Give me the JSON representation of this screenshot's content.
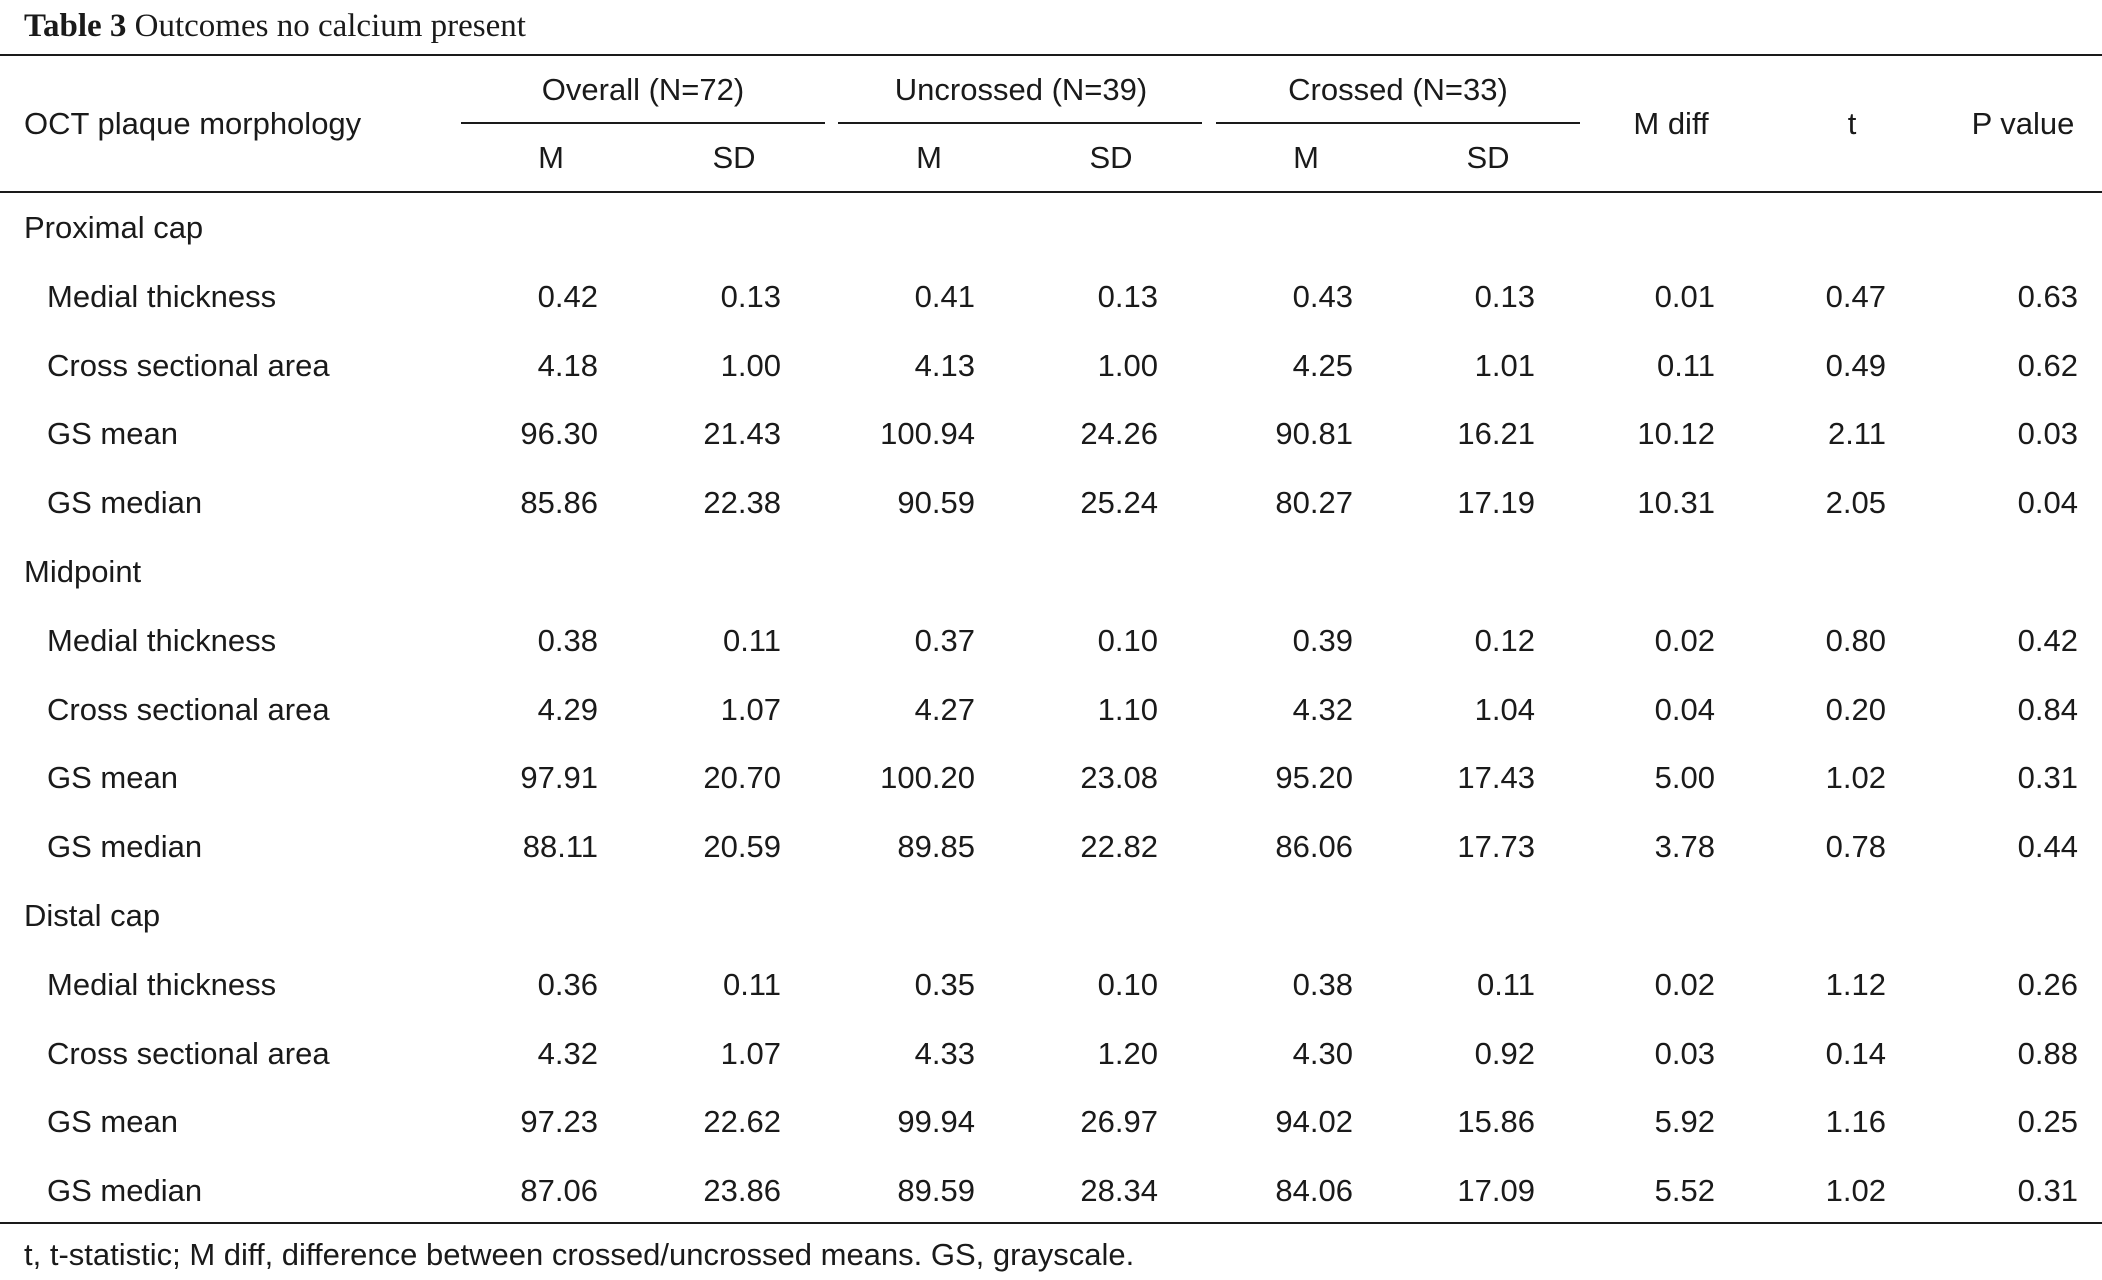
{
  "caption": {
    "label": "Table 3",
    "title": "Outcomes no calcium present"
  },
  "header": {
    "row_label": "OCT plaque morphology",
    "groups": [
      "Overall (N=72)",
      "Uncrossed (N=39)",
      "Crossed (N=33)"
    ],
    "sub": [
      "M",
      "SD",
      "M",
      "SD",
      "M",
      "SD"
    ],
    "mdiff": "M diff",
    "t": "t",
    "p": "P value"
  },
  "sections": [
    {
      "title": "Proximal cap",
      "rows": [
        {
          "label": "Medial thickness",
          "values": [
            "0.42",
            "0.13",
            "0.41",
            "0.13",
            "0.43",
            "0.13",
            "0.01",
            "0.47",
            "0.63"
          ]
        },
        {
          "label": "Cross sectional area",
          "values": [
            "4.18",
            "1.00",
            "4.13",
            "1.00",
            "4.25",
            "1.01",
            "0.11",
            "0.49",
            "0.62"
          ]
        },
        {
          "label": "GS mean",
          "values": [
            "96.30",
            "21.43",
            "100.94",
            "24.26",
            "90.81",
            "16.21",
            "10.12",
            "2.11",
            "0.03"
          ]
        },
        {
          "label": "GS median",
          "values": [
            "85.86",
            "22.38",
            "90.59",
            "25.24",
            "80.27",
            "17.19",
            "10.31",
            "2.05",
            "0.04"
          ]
        }
      ]
    },
    {
      "title": "Midpoint",
      "rows": [
        {
          "label": "Medial thickness",
          "values": [
            "0.38",
            "0.11",
            "0.37",
            "0.10",
            "0.39",
            "0.12",
            "0.02",
            "0.80",
            "0.42"
          ]
        },
        {
          "label": "Cross sectional area",
          "values": [
            "4.29",
            "1.07",
            "4.27",
            "1.10",
            "4.32",
            "1.04",
            "0.04",
            "0.20",
            "0.84"
          ]
        },
        {
          "label": "GS mean",
          "values": [
            "97.91",
            "20.70",
            "100.20",
            "23.08",
            "95.20",
            "17.43",
            "5.00",
            "1.02",
            "0.31"
          ]
        },
        {
          "label": "GS median",
          "values": [
            "88.11",
            "20.59",
            "89.85",
            "22.82",
            "86.06",
            "17.73",
            "3.78",
            "0.78",
            "0.44"
          ]
        }
      ]
    },
    {
      "title": "Distal cap",
      "rows": [
        {
          "label": "Medial thickness",
          "values": [
            "0.36",
            "0.11",
            "0.35",
            "0.10",
            "0.38",
            "0.11",
            "0.02",
            "1.12",
            "0.26"
          ]
        },
        {
          "label": "Cross sectional area",
          "values": [
            "4.32",
            "1.07",
            "4.33",
            "1.20",
            "4.30",
            "0.92",
            "0.03",
            "0.14",
            "0.88"
          ]
        },
        {
          "label": "GS mean",
          "values": [
            "97.23",
            "22.62",
            "99.94",
            "26.97",
            "94.02",
            "15.86",
            "5.92",
            "1.16",
            "0.25"
          ]
        },
        {
          "label": "GS median",
          "values": [
            "87.06",
            "23.86",
            "89.59",
            "28.34",
            "84.06",
            "17.09",
            "5.52",
            "1.02",
            "0.31"
          ]
        }
      ]
    }
  ],
  "footnote": "t, t-statistic; M diff, difference between crossed/uncrossed means. GS, grayscale."
}
